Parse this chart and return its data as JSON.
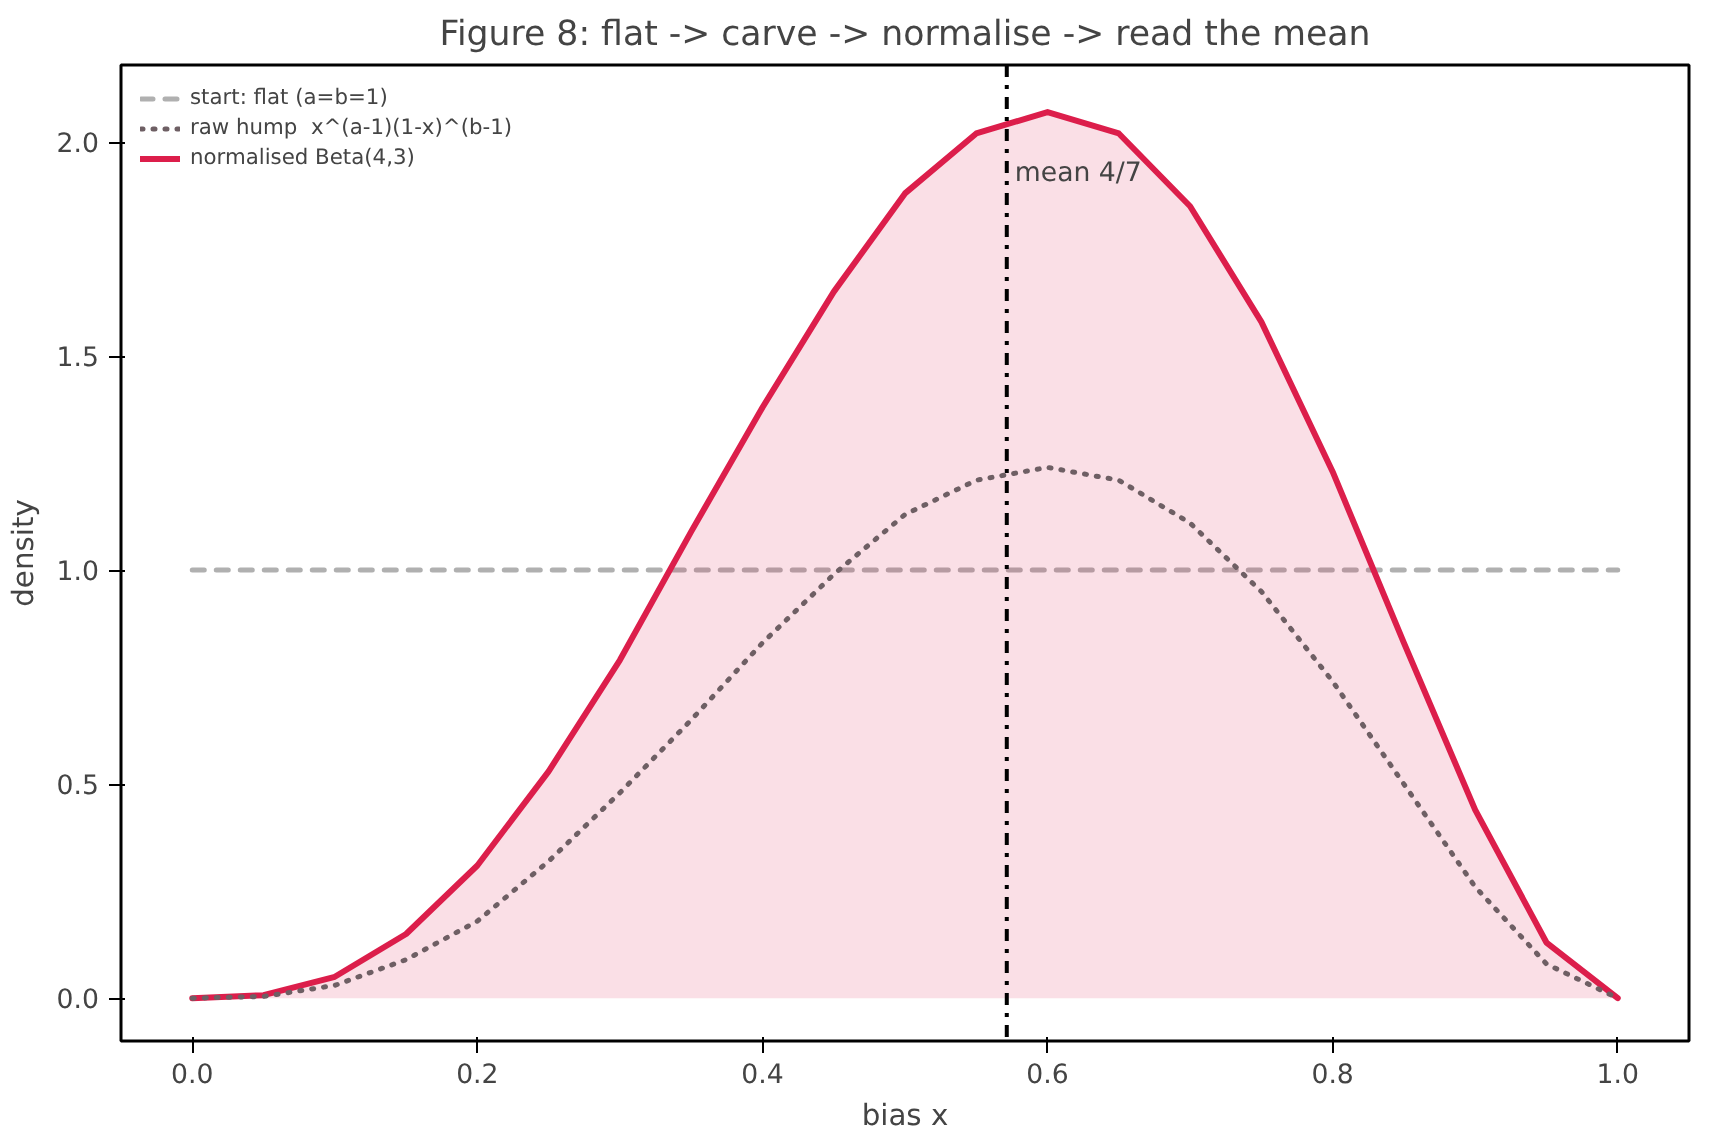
{
  "chart_data": {
    "type": "line",
    "title": "Figure 8: flat -> carve -> normalise -> read the mean",
    "xlabel": "bias x",
    "ylabel": "density",
    "xlim": [
      -0.05,
      1.05
    ],
    "ylim": [
      -0.1,
      2.18
    ],
    "xticks": [
      {
        "value": 0,
        "label": "0.0"
      },
      0.2,
      0.4,
      0.6,
      0.8,
      {
        "value": 1,
        "label": "1.0"
      }
    ],
    "yticks": [
      {
        "value": 0,
        "label": "0.0"
      },
      0.5,
      {
        "value": 1,
        "label": "1.0"
      },
      1.5,
      {
        "value": 2,
        "label": "2.0"
      }
    ],
    "grid": false,
    "legend": "top left",
    "series": [
      {
        "name": "start: flat (a=b=1)",
        "color": "#b0b0b0",
        "line_style": "dashed",
        "x": [
          0,
          1
        ],
        "values": [
          1,
          1
        ]
      },
      {
        "name": "raw hump  x^(a-1)(1-x)^(b-1)",
        "color": "#6e5f64",
        "line_style": "dotted",
        "x": [
          0,
          0.05,
          0.1,
          0.15,
          0.2,
          0.25,
          0.3,
          0.35,
          0.4,
          0.45,
          0.5,
          0.55,
          0.6,
          0.65,
          0.7,
          0.75,
          0.8,
          0.85,
          0.9,
          0.95,
          1
        ],
        "values": [
          0,
          0.004,
          0.03,
          0.09,
          0.18,
          0.32,
          0.48,
          0.65,
          0.83,
          0.99,
          1.13,
          1.21,
          1.24,
          1.21,
          1.11,
          0.95,
          0.74,
          0.5,
          0.26,
          0.08,
          0
        ]
      },
      {
        "name": "normalised Beta(4,3)",
        "type": "area",
        "color": "#dc1e4b",
        "line_style": "solid",
        "x": [
          0,
          0.05,
          0.1,
          0.15,
          0.2,
          0.25,
          0.3,
          0.35,
          0.4,
          0.45,
          0.5,
          0.55,
          0.6,
          0.65,
          0.7,
          0.75,
          0.8,
          0.85,
          0.9,
          0.95,
          1
        ],
        "values": [
          0,
          0.007,
          0.05,
          0.15,
          0.31,
          0.53,
          0.79,
          1.09,
          1.38,
          1.65,
          1.88,
          2.02,
          2.07,
          2.02,
          1.85,
          1.58,
          1.23,
          0.83,
          0.44,
          0.13,
          0
        ]
      }
    ],
    "ref_lines": [
      {
        "axis": "x",
        "value": 0.5714,
        "label": "mean 4/7",
        "color": "#000000",
        "line_style": "dashdot"
      }
    ]
  }
}
